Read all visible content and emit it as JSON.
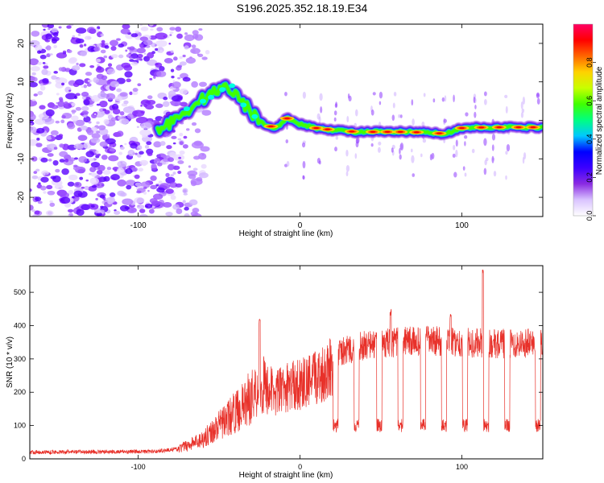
{
  "title": "S196.2025.352.18.19.E34",
  "colors": {
    "snr_line": "#e8312a",
    "frame": "#000000"
  },
  "chart_data": [
    {
      "type": "heatmap",
      "xlabel": "Height of straight line (km)",
      "ylabel": "Frequency (Hz)",
      "xlim": [
        -167,
        150
      ],
      "ylim": [
        -25,
        25
      ],
      "xticks": [
        -100,
        0,
        100
      ],
      "yticks": [
        -20,
        -10,
        0,
        10,
        20
      ],
      "colorbar": {
        "label": "Normalized spectral amplitude",
        "range": [
          0,
          1
        ],
        "ticks": [
          "0.0",
          "0.2",
          "0.4",
          "0.6",
          "0.8"
        ],
        "tick_values": [
          0.0,
          0.2,
          0.4,
          0.6,
          0.8
        ],
        "stops": [
          "#ffffff",
          "#d9c3ff",
          "#8a2be2",
          "#3c00ff",
          "#0000ff",
          "#00c8ff",
          "#00ff80",
          "#40ff00",
          "#c8ff00",
          "#ffd200",
          "#ff6600",
          "#ff0000",
          "#ff0064"
        ]
      },
      "ridge": [
        {
          "x": -85,
          "y": -2
        },
        {
          "x": -75,
          "y": 1
        },
        {
          "x": -65,
          "y": 4
        },
        {
          "x": -55,
          "y": 7
        },
        {
          "x": -45,
          "y": 9
        },
        {
          "x": -38,
          "y": 6
        },
        {
          "x": -30,
          "y": 2
        },
        {
          "x": -22,
          "y": -1
        },
        {
          "x": -15,
          "y": -2
        },
        {
          "x": -8,
          "y": 0.5
        },
        {
          "x": 0,
          "y": -1
        },
        {
          "x": 10,
          "y": -2
        },
        {
          "x": 20,
          "y": -2.5
        },
        {
          "x": 35,
          "y": -3
        },
        {
          "x": 50,
          "y": -3
        },
        {
          "x": 65,
          "y": -3
        },
        {
          "x": 80,
          "y": -3.2
        },
        {
          "x": 90,
          "y": -3.5
        },
        {
          "x": 100,
          "y": -2
        },
        {
          "x": 115,
          "y": -1.8
        },
        {
          "x": 130,
          "y": -1.8
        },
        {
          "x": 148,
          "y": -1.8
        }
      ]
    },
    {
      "type": "line",
      "xlabel": "Height of straight line (km)",
      "ylabel": "SNR (10 * v/v)",
      "xlim": [
        -167,
        150
      ],
      "ylim": [
        0,
        580
      ],
      "xticks": [
        -100,
        0,
        100
      ],
      "yticks": [
        0,
        100,
        200,
        300,
        400,
        500
      ],
      "envelope": [
        {
          "x": -167,
          "y": 20
        },
        {
          "x": -90,
          "y": 22
        },
        {
          "x": -75,
          "y": 30
        },
        {
          "x": -60,
          "y": 60
        },
        {
          "x": -45,
          "y": 120
        },
        {
          "x": -35,
          "y": 160
        },
        {
          "x": -25,
          "y": 220
        },
        {
          "x": -15,
          "y": 200
        },
        {
          "x": -5,
          "y": 220
        },
        {
          "x": 5,
          "y": 230
        },
        {
          "x": 15,
          "y": 260
        },
        {
          "x": 25,
          "y": 320
        },
        {
          "x": 40,
          "y": 340
        },
        {
          "x": 60,
          "y": 350
        },
        {
          "x": 80,
          "y": 355
        },
        {
          "x": 100,
          "y": 350
        },
        {
          "x": 120,
          "y": 345
        },
        {
          "x": 150,
          "y": 350
        }
      ],
      "dips": [
        22,
        35,
        49,
        62,
        76,
        89,
        102,
        115,
        128,
        147
      ],
      "peaks": [
        {
          "x": -25,
          "y": 420
        },
        {
          "x": 113,
          "y": 575
        },
        {
          "x": 56,
          "y": 450
        },
        {
          "x": 93,
          "y": 440
        }
      ]
    }
  ]
}
